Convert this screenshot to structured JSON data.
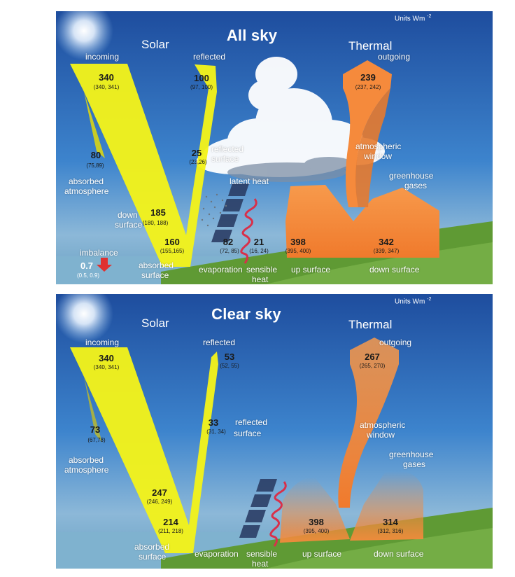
{
  "units": {
    "prefix": "Units Wm",
    "exponent": "-2"
  },
  "all_sky": {
    "title": "All sky",
    "solar_header": "Solar",
    "thermal_header": "Thermal",
    "incoming": {
      "label": "incoming",
      "value": "340",
      "range": "(340, 341)"
    },
    "reflected": {
      "label": "reflected",
      "value": "100",
      "range": "(97, 100)"
    },
    "reflected_surface": {
      "label1": "reflected",
      "label2": "surface",
      "value": "25",
      "range": "(23,26)"
    },
    "absorbed_atmosphere": {
      "label1": "absorbed",
      "label2": "atmosphere",
      "value": "80",
      "range": "(75,89)"
    },
    "down_surface_solar": {
      "label1": "down",
      "label2": "surface",
      "value": "185",
      "range": "(180, 188)"
    },
    "absorbed_surface": {
      "label1": "absorbed",
      "label2": "surface",
      "value": "160",
      "range": "(155,165)"
    },
    "imbalance": {
      "label": "imbalance",
      "value": "0.7",
      "range": "(0.5, 0.9)"
    },
    "latent_heat": {
      "label": "latent heat"
    },
    "evaporation": {
      "label": "evaporation",
      "value": "82",
      "range": "(72, 85)"
    },
    "sensible_heat": {
      "label1": "sensible",
      "label2": "heat",
      "value": "21",
      "range": "(16, 24)"
    },
    "outgoing": {
      "label": "outgoing",
      "value": "239",
      "range": "(237, 242)"
    },
    "atmospheric_window": {
      "label1": "atmospheric",
      "label2": "window"
    },
    "greenhouse_gases": {
      "label1": "greenhouse",
      "label2": "gases"
    },
    "up_surface": {
      "label": "up surface",
      "value": "398",
      "range": "(395, 400)"
    },
    "down_surface_thermal": {
      "label": "down surface",
      "value": "342",
      "range": "(339, 347)"
    }
  },
  "clear_sky": {
    "title": "Clear sky",
    "solar_header": "Solar",
    "thermal_header": "Thermal",
    "incoming": {
      "label": "incoming",
      "value": "340",
      "range": "(340, 341)"
    },
    "reflected": {
      "label": "reflected",
      "value": "53",
      "range": "(52, 55)"
    },
    "reflected_surface": {
      "label1": "reflected",
      "label2": "surface",
      "value": "33",
      "range": "(31, 34)"
    },
    "absorbed_atmosphere": {
      "label1": "absorbed",
      "label2": "atmosphere",
      "value": "73",
      "range": "(67,78)"
    },
    "down_surface_solar": {
      "value": "247",
      "range": "(246, 249)"
    },
    "absorbed_surface": {
      "label1": "absorbed",
      "label2": "surface",
      "value": "214",
      "range": "(211, 218)"
    },
    "evaporation": {
      "label": "evaporation"
    },
    "sensible_heat": {
      "label1": "sensible",
      "label2": "heat"
    },
    "outgoing": {
      "label": "outgoing",
      "value": "267",
      "range": "(265, 270)"
    },
    "atmospheric_window": {
      "label1": "atmospheric",
      "label2": "window"
    },
    "greenhouse_gases": {
      "label1": "greenhouse",
      "label2": "gases"
    },
    "up_surface": {
      "label": "up surface",
      "value": "398",
      "range": "(395, 400)"
    },
    "down_surface_thermal": {
      "label": "down surface",
      "value": "314",
      "range": "(312, 316)"
    }
  },
  "colors": {
    "sky_top": "#1f4fa0",
    "sky_mid": "#3f86cf",
    "sea": "#6aa6c9",
    "grass": "#5f9a34",
    "solar": "#f2f21a",
    "thermal": "#f58a3c"
  }
}
